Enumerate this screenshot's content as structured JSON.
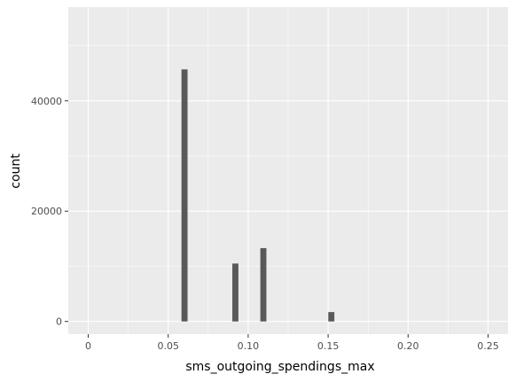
{
  "chart_data": {
    "type": "bar",
    "subtype": "histogram",
    "xlabel": "sms_outgoing_spendings_max",
    "ylabel": "count",
    "xlim": [
      -0.0125,
      0.2625
    ],
    "ylim": [
      -2300,
      57000
    ],
    "x_ticks": [
      0,
      0.05,
      0.1,
      0.15,
      0.2,
      0.25
    ],
    "x_tick_labels": [
      "0",
      "0.05",
      "0.10",
      "0.15",
      "0.20",
      "0.25"
    ],
    "y_ticks": [
      0,
      20000,
      40000
    ],
    "y_tick_labels": [
      "0",
      "20000",
      "40000"
    ],
    "bin_width": 0.0038,
    "bars": [
      {
        "x": 0.0602,
        "count": 45700
      },
      {
        "x": 0.092,
        "count": 10500
      },
      {
        "x": 0.1095,
        "count": 13300
      },
      {
        "x": 0.152,
        "count": 1700
      }
    ],
    "grid": true,
    "colors": {
      "panel_background": "#ebebeb",
      "grid_major": "#ffffff",
      "bar_fill": "#595959",
      "tick_mark": "#333333"
    }
  }
}
